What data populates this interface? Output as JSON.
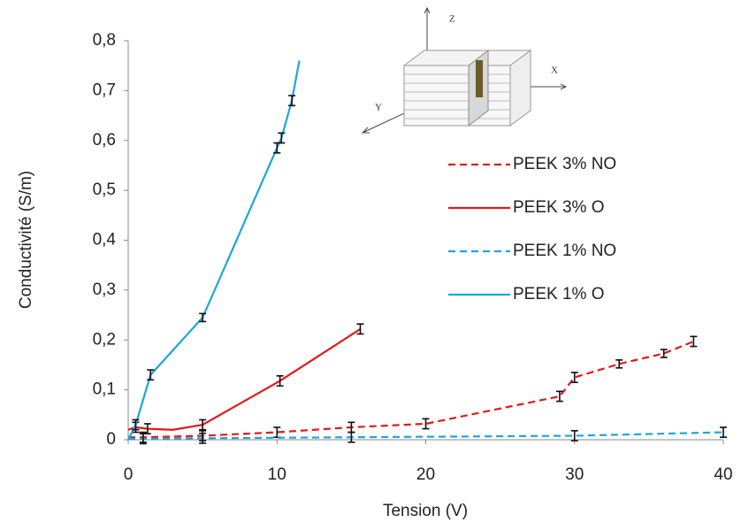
{
  "chart_data": {
    "type": "line",
    "x_label": "Tension (V)",
    "y_label": "Conductivité (S/m)",
    "xlim": [
      0,
      40
    ],
    "xticks": [
      0,
      10,
      20,
      30,
      40
    ],
    "ylim": [
      0,
      0.8
    ],
    "yticks": [
      0,
      {
        "value": 0.1,
        "label": "0,1"
      },
      {
        "value": 0.2,
        "label": "0,2"
      },
      {
        "value": 0.3,
        "label": "0,3"
      },
      {
        "value": 0.4,
        "label": "0,4"
      },
      {
        "value": 0.5,
        "label": "0,5"
      },
      {
        "value": 0.6,
        "label": "0,6"
      },
      {
        "value": 0.7,
        "label": "0,7"
      },
      {
        "value": 0.8,
        "label": "0,8"
      }
    ],
    "grid": false,
    "legend": "right",
    "annotations": [
      "Z",
      "X",
      "Y"
    ],
    "series": [
      {
        "name": "PEEK 3% NO",
        "color": "#e3191c",
        "dashed": true,
        "x": [
          0,
          1,
          5,
          10,
          15,
          20,
          29,
          30,
          33,
          36,
          38
        ],
        "values": [
          0.005,
          0.005,
          0.008,
          0.015,
          0.025,
          0.032,
          0.087,
          0.125,
          0.152,
          0.173,
          0.197
        ],
        "errors": [
          null,
          0.01,
          0.01,
          0.01,
          0.01,
          0.01,
          0.01,
          0.01,
          0.008,
          0.008,
          0.01
        ]
      },
      {
        "name": "PEEK 3% O",
        "color": "#e3191c",
        "dashed": false,
        "x": [
          0,
          0.5,
          1.3,
          3,
          5,
          10.2,
          15.6
        ],
        "values": [
          0.02,
          0.025,
          0.022,
          0.02,
          0.03,
          0.118,
          0.222
        ],
        "errors": [
          null,
          0.01,
          0.01,
          null,
          0.01,
          0.01,
          0.01
        ]
      },
      {
        "name": "PEEK 1% NO",
        "color": "#1ba6dc",
        "dashed": true,
        "x": [
          0,
          1,
          5,
          15,
          30,
          40
        ],
        "values": [
          0.002,
          0.002,
          0.003,
          0.005,
          0.008,
          0.015
        ],
        "errors": [
          null,
          0.01,
          0.01,
          0.01,
          0.01,
          0.01
        ]
      },
      {
        "name": "PEEK 1% O",
        "color": "#1ba6dc",
        "dashed": false,
        "x": [
          0,
          0.5,
          1.5,
          5,
          10,
          10.3,
          11,
          11.5
        ],
        "values": [
          0,
          0.03,
          0.13,
          0.245,
          0.585,
          0.605,
          0.68,
          0.76
        ],
        "errors": [
          null,
          0.01,
          0.01,
          0.008,
          0.01,
          0.01,
          0.01,
          null
        ]
      }
    ]
  }
}
